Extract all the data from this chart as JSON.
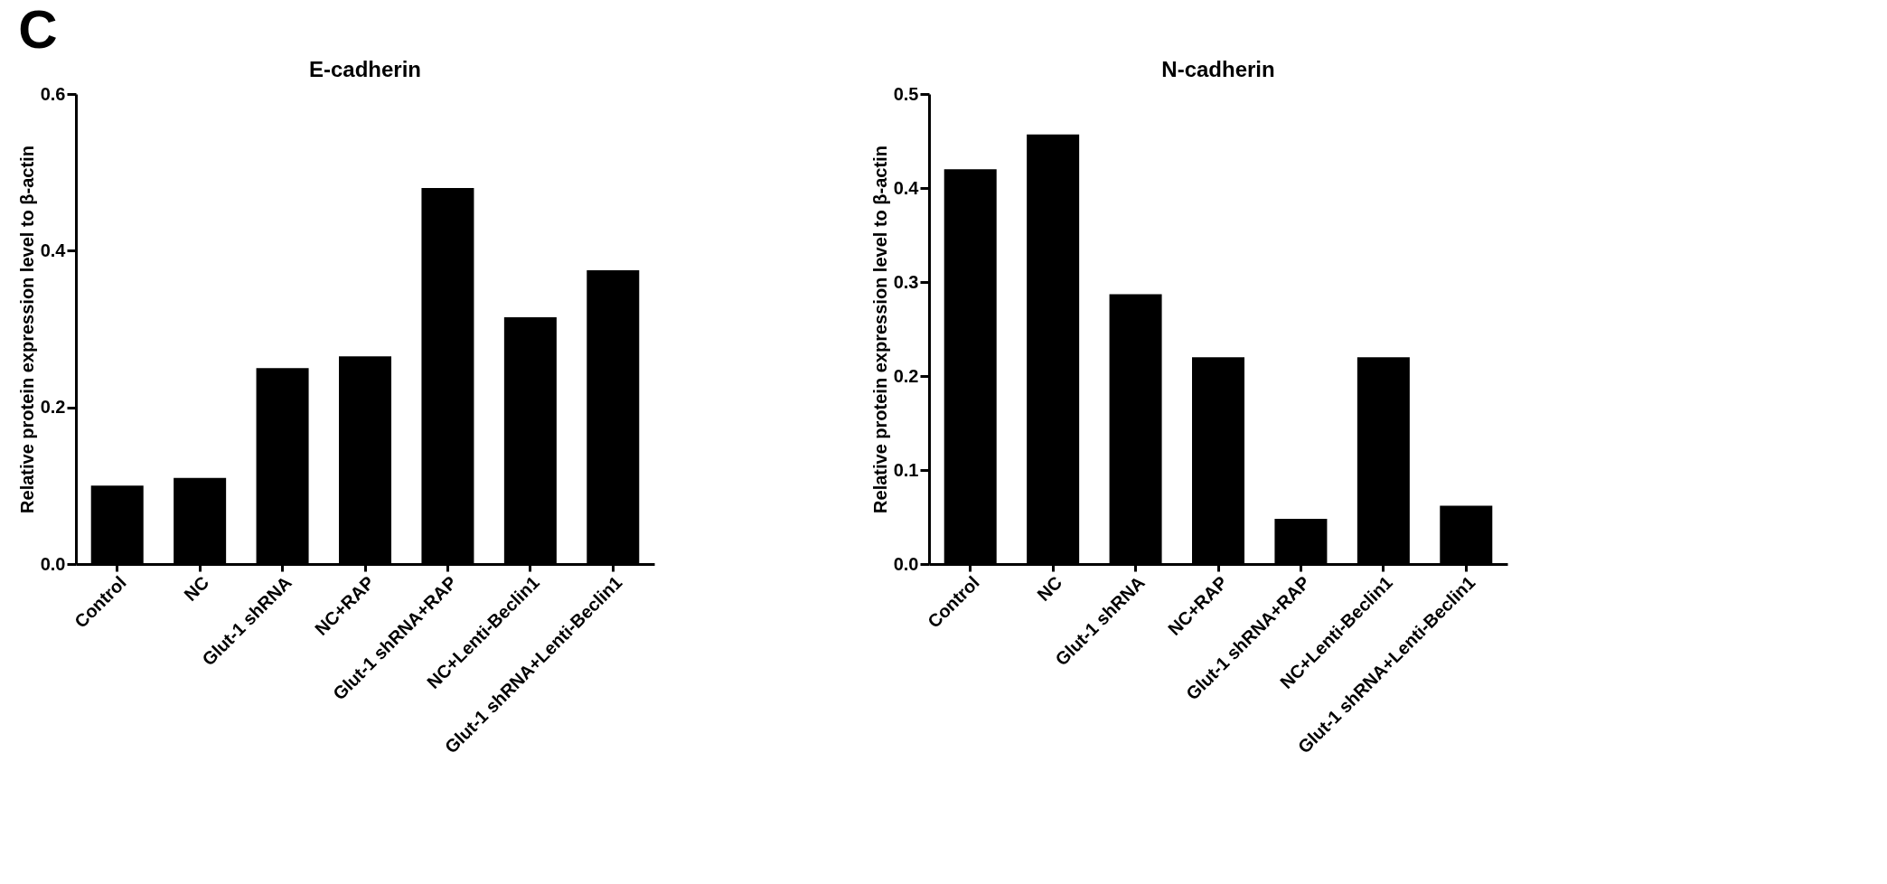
{
  "chart_data": [
    {
      "type": "bar",
      "title": "E-cadherin",
      "ylabel": "Relative protein expression level to β-actin",
      "annotations": [
        "C"
      ],
      "categories": [
        "Control",
        "NC",
        "Glut-1 shRNA",
        "NC+RAP",
        "Glut-1 shRNA+RAP",
        "NC+Lenti-Beclin1",
        "Glut-1 shRNA+Lenti-Beclin1"
      ],
      "values": [
        0.1,
        0.11,
        0.25,
        0.265,
        0.48,
        0.315,
        0.375
      ],
      "color": "#000000",
      "ylim": [
        0,
        0.6
      ],
      "yticks": [
        {
          "value": 0,
          "label": "0.0"
        },
        0.2,
        0.4,
        0.6
      ],
      "grid": false
    },
    {
      "type": "bar",
      "title": "N-cadherin",
      "ylabel": "Relative protein expression level to β-actin",
      "categories": [
        "Control",
        "NC",
        "Glut-1 shRNA",
        "NC+RAP",
        "Glut-1 shRNA+RAP",
        "NC+Lenti-Beclin1",
        "Glut-1 shRNA+Lenti-Beclin1"
      ],
      "values": [
        0.42,
        0.457,
        0.287,
        0.22,
        0.048,
        0.22,
        0.062
      ],
      "color": "#000000",
      "ylim": [
        0,
        0.5
      ],
      "yticks": [
        {
          "value": 0,
          "label": "0.0"
        },
        0.1,
        0.2,
        0.3,
        0.4,
        0.5
      ],
      "grid": false
    }
  ]
}
